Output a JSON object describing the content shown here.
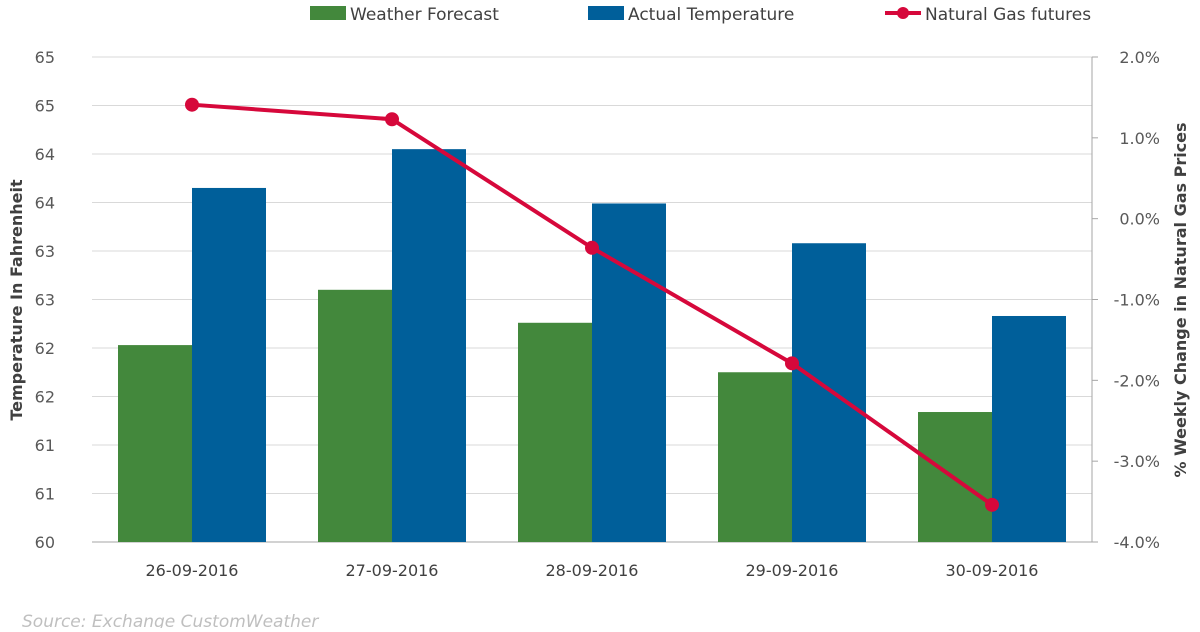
{
  "chart_data": {
    "type": "bar",
    "categories": [
      "26-09-2016",
      "27-09-2016",
      "28-09-2016",
      "29-09-2016",
      "30-09-2016"
    ],
    "series": [
      {
        "name": "Weather Forecast",
        "type": "bar",
        "axis": "left",
        "color": "#43883c",
        "values": [
          62.03,
          62.6,
          62.26,
          61.75,
          61.34
        ]
      },
      {
        "name": "Actual Temperature",
        "type": "bar",
        "axis": "left",
        "color": "#005f9a",
        "values": [
          63.65,
          64.05,
          63.49,
          63.08,
          62.33
        ]
      },
      {
        "name": "Natural Gas futures",
        "type": "line",
        "axis": "right",
        "color": "#d6083b",
        "values": [
          1.41,
          1.23,
          -0.36,
          -1.79,
          -3.54
        ]
      }
    ],
    "ylabel": "Temperature  In Fahrenheit",
    "y2label": "% Weekly Change in Natural Gas Prices",
    "ylim": [
      60,
      65
    ],
    "y2lim": [
      -4,
      2
    ],
    "yticks": [
      60,
      60.5,
      61,
      61.5,
      62,
      62.5,
      63,
      63.5,
      64,
      64.5,
      65
    ],
    "ytick_labels": [
      "60",
      "61",
      "61",
      "62",
      "62",
      "63",
      "63",
      "64",
      "64",
      "65",
      "65"
    ],
    "y2ticks": [
      -4,
      -3,
      -2,
      -1,
      0,
      1,
      2
    ],
    "y2tick_labels": [
      "-4.0%",
      "-3.0%",
      "-2.0%",
      "-1.0%",
      "0.0%",
      "1.0%",
      "2.0%"
    ],
    "grid": true,
    "legend": "top"
  },
  "source": "Source: Exchange CustomWeather"
}
